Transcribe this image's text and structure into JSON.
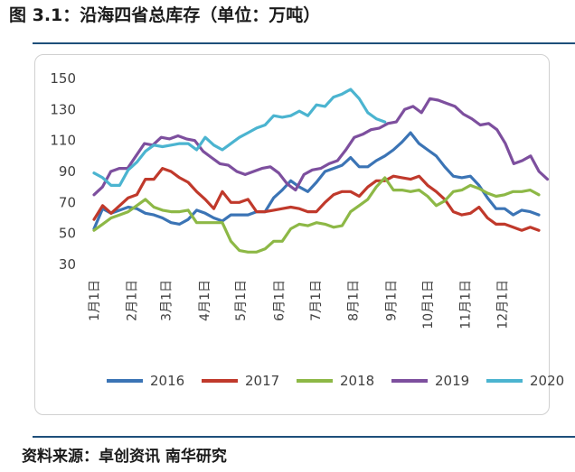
{
  "header": {
    "title": "图 3.1：沿海四省总库存（单位：万吨）"
  },
  "footer": {
    "source": "资料来源：卓创资讯  南华研究"
  },
  "chart_data": {
    "type": "line",
    "title": "图 3.1：沿海四省总库存（单位：万吨）",
    "xlabel": "",
    "ylabel": "",
    "ylim": [
      30,
      150
    ],
    "yticks": [
      30,
      50,
      70,
      90,
      110,
      130,
      150
    ],
    "grid": false,
    "legend_position": "bottom",
    "x_tick_labels": [
      "1月1日",
      "2月1日",
      "3月1日",
      "4月1日",
      "5月1日",
      "6月1日",
      "7月1日",
      "8月1日",
      "9月1日",
      "10月1日",
      "11月1日",
      "12月1日"
    ],
    "x_tick_weeks": [
      0,
      4.4,
      8.4,
      12.9,
      17.1,
      21.6,
      25.9,
      30.3,
      34.7,
      39,
      43.4,
      47.7
    ],
    "series": [
      {
        "name": "2016",
        "color": "#3b74b5",
        "values": [
          53,
          66,
          63,
          65,
          67,
          66,
          63,
          62,
          60,
          57,
          56,
          59,
          65,
          63,
          60,
          58,
          62,
          62,
          62,
          64,
          64,
          73,
          78,
          84,
          80,
          77,
          83,
          90,
          92,
          94,
          99,
          93,
          93,
          97,
          100,
          104,
          109,
          115,
          108,
          104,
          100,
          93,
          87,
          86,
          87,
          81,
          73,
          66,
          66,
          62,
          65,
          64,
          62
        ]
      },
      {
        "name": "2017",
        "color": "#c0392b",
        "values": [
          59,
          68,
          63,
          68,
          73,
          75,
          85,
          85,
          92,
          90,
          86,
          83,
          77,
          72,
          66,
          77,
          70,
          70,
          72,
          64,
          64,
          65,
          66,
          67,
          66,
          64,
          64,
          70,
          75,
          77,
          77,
          74,
          80,
          84,
          84,
          87,
          86,
          85,
          87,
          81,
          77,
          72,
          64,
          62,
          63,
          67,
          60,
          56,
          56,
          54,
          52,
          54,
          52
        ]
      },
      {
        "name": "2018",
        "color": "#8db846",
        "values": [
          52,
          56,
          60,
          62,
          64,
          68,
          72,
          67,
          65,
          64,
          64,
          65,
          57,
          57,
          57,
          57,
          45,
          39,
          38,
          38,
          40,
          45,
          45,
          53,
          56,
          55,
          57,
          56,
          54,
          55,
          64,
          68,
          72,
          80,
          86,
          78,
          78,
          77,
          78,
          74,
          68,
          71,
          77,
          78,
          81,
          79,
          76,
          74,
          75,
          77,
          77,
          78,
          75
        ]
      },
      {
        "name": "2019",
        "color": "#7d4f9e",
        "values": [
          75,
          80,
          90,
          92,
          92,
          100,
          108,
          107,
          112,
          111,
          113,
          111,
          110,
          103,
          99,
          95,
          94,
          90,
          88,
          90,
          92,
          93,
          89,
          82,
          78,
          88,
          91,
          92,
          95,
          97,
          104,
          112,
          114,
          117,
          118,
          121,
          122,
          130,
          132,
          128,
          137,
          136,
          134,
          132,
          127,
          124,
          120,
          121,
          117,
          108,
          95,
          97,
          100,
          90,
          85
        ]
      },
      {
        "name": "2020",
        "color": "#4bb4d0",
        "values": [
          89,
          86,
          81,
          81,
          91,
          96,
          103,
          107,
          106,
          107,
          108,
          108,
          104,
          112,
          107,
          104,
          108,
          112,
          115,
          118,
          120,
          126,
          125,
          126,
          129,
          126,
          133,
          132,
          138,
          140,
          143,
          137,
          128,
          124,
          122
        ]
      }
    ]
  }
}
